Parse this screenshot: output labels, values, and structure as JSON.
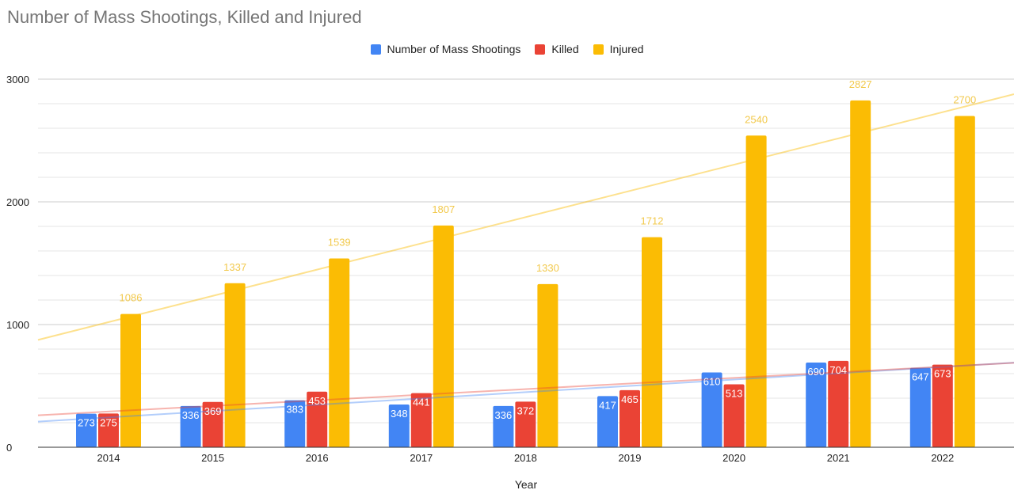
{
  "chart_data": {
    "type": "bar",
    "title": "Number of Mass Shootings, Killed and Injured",
    "xlabel": "Year",
    "ylabel": "",
    "ylim": [
      0,
      3000
    ],
    "yticks": [
      0,
      1000,
      2000,
      3000
    ],
    "minor_gridline_step": 200,
    "grid": true,
    "legend_position": "top-center",
    "categories": [
      "2014",
      "2015",
      "2016",
      "2017",
      "2018",
      "2019",
      "2020",
      "2021",
      "2022"
    ],
    "series": [
      {
        "name": "Number of Mass Shootings",
        "color": "#4285f4",
        "values": [
          273,
          336,
          383,
          348,
          336,
          417,
          610,
          690,
          647
        ],
        "data_labels": "inside-top",
        "trendline": true
      },
      {
        "name": "Killed",
        "color": "#ea4335",
        "values": [
          275,
          369,
          453,
          441,
          372,
          465,
          513,
          704,
          673
        ],
        "data_labels": "inside-top",
        "trendline": true
      },
      {
        "name": "Injured",
        "color": "#fbbc04",
        "values": [
          1086,
          1337,
          1539,
          1807,
          1330,
          1712,
          2540,
          2827,
          2700
        ],
        "data_labels": "above",
        "trendline": true
      }
    ]
  }
}
